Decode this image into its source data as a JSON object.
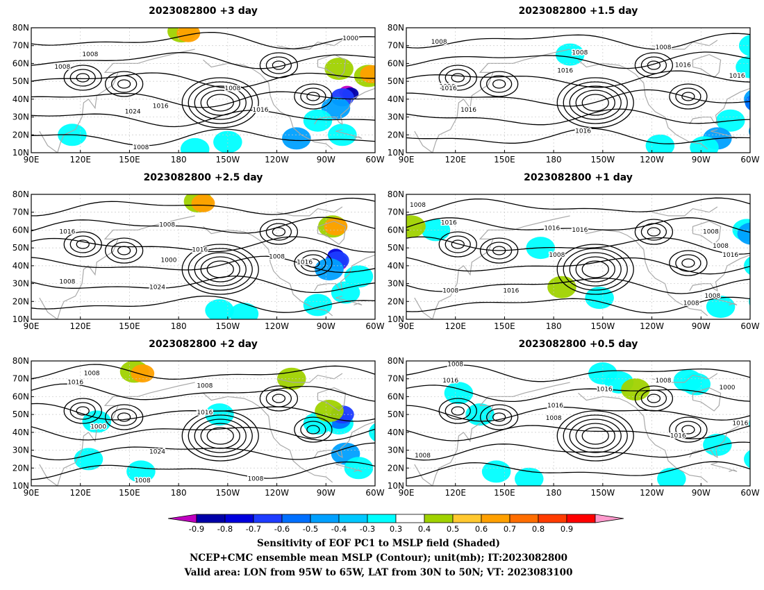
{
  "chart_data": {
    "type": "heatmap",
    "panels": [
      {
        "title": "2023082800 +3 day",
        "lead_days": 3
      },
      {
        "title": "2023082800 +1.5 day",
        "lead_days": 1.5
      },
      {
        "title": "2023082800 +2.5 day",
        "lead_days": 2.5
      },
      {
        "title": "2023082800 +1 day",
        "lead_days": 1
      },
      {
        "title": "2023082800 +2 day",
        "lead_days": 2
      },
      {
        "title": "2023082800 +0.5 day",
        "lead_days": 0.5
      }
    ],
    "x_ticks": [
      "90E",
      "120E",
      "150E",
      "180",
      "150W",
      "120W",
      "90W",
      "60W"
    ],
    "y_ticks": [
      "10N",
      "20N",
      "30N",
      "40N",
      "50N",
      "60N",
      "70N",
      "80N"
    ],
    "lon_range": [
      90,
      300
    ],
    "lat_range": [
      10,
      80
    ],
    "colorbar": {
      "levels": [
        "-0.9",
        "-0.8",
        "-0.7",
        "-0.6",
        "-0.5",
        "-0.4",
        "-0.3",
        "0.3",
        "0.4",
        "0.5",
        "0.6",
        "0.7",
        "0.8",
        "0.9"
      ],
      "colors": [
        "#c000c0",
        "#0000a8",
        "#0000dd",
        "#1e3cff",
        "#0070ff",
        "#00a0ff",
        "#00c8ff",
        "#00ffff",
        "#ffffff",
        "#a0d200",
        "#ffc830",
        "#ffa000",
        "#ff6e00",
        "#ff3c00",
        "#ff0000",
        "#ff99cc"
      ]
    },
    "contour_labels": [
      {
        "panel": 0,
        "items": [
          [
            "1008",
            109,
            57
          ],
          [
            "1008",
            126,
            64
          ],
          [
            "1016",
            169,
            35
          ],
          [
            "1016",
            230,
            33
          ],
          [
            "1024",
            152,
            32
          ],
          [
            "1008",
            213,
            45
          ],
          [
            "1000",
            285,
            73
          ],
          [
            "1008",
            157,
            12
          ]
        ]
      },
      {
        "panel": 1,
        "items": [
          [
            "1008",
            110,
            71
          ],
          [
            "1016",
            187,
            55
          ],
          [
            "1008",
            196,
            65
          ],
          [
            "1008",
            247,
            68
          ],
          [
            "1016",
            259,
            58
          ],
          [
            "1016",
            292,
            52
          ],
          [
            "1008",
            115,
            46
          ],
          [
            "1016",
            116,
            45
          ],
          [
            "1016",
            128,
            33
          ],
          [
            "1016",
            198,
            21
          ]
        ]
      },
      {
        "panel": 2,
        "items": [
          [
            "1016",
            112,
            58
          ],
          [
            "1008",
            173,
            62
          ],
          [
            "1000",
            174,
            42
          ],
          [
            "1016",
            193,
            48
          ],
          [
            "1024",
            167,
            27
          ],
          [
            "1008",
            240,
            44
          ],
          [
            "1016",
            257,
            41
          ],
          [
            "1008",
            112,
            30
          ]
        ]
      },
      {
        "panel": 3,
        "items": [
          [
            "1008",
            97,
            73
          ],
          [
            "1016",
            116,
            63
          ],
          [
            "1016",
            179,
            60
          ],
          [
            "1016",
            196,
            59
          ],
          [
            "1008",
            276,
            58
          ],
          [
            "1008",
            282,
            50
          ],
          [
            "1016",
            288,
            45
          ],
          [
            "1008",
            182,
            45
          ],
          [
            "1008",
            117,
            25
          ],
          [
            "1016",
            154,
            25
          ],
          [
            "1008",
            277,
            22
          ],
          [
            "1008",
            264,
            18
          ]
        ]
      },
      {
        "panel": 4,
        "items": [
          [
            "1008",
            127,
            72
          ],
          [
            "1016",
            117,
            67
          ],
          [
            "1008",
            196,
            65
          ],
          [
            "1000",
            131,
            42
          ],
          [
            "1016",
            196,
            50
          ],
          [
            "1024",
            167,
            28
          ],
          [
            "1008",
            227,
            13
          ],
          [
            "1008",
            158,
            12
          ]
        ]
      },
      {
        "panel": 5,
        "items": [
          [
            "1008",
            120,
            77
          ],
          [
            "1016",
            117,
            68
          ],
          [
            "1008",
            247,
            68
          ],
          [
            "1016",
            211,
            63
          ],
          [
            "1000",
            286,
            64
          ],
          [
            "1016",
            181,
            54
          ],
          [
            "1008",
            180,
            47
          ],
          [
            "1016",
            294,
            44
          ],
          [
            "1016",
            256,
            37
          ],
          [
            "1008",
            100,
            26
          ]
        ]
      }
    ],
    "shading_regions": [
      {
        "panel": 0,
        "items": [
          [
            -0.9,
            -77,
            44
          ],
          [
            -0.8,
            -75,
            43
          ],
          [
            -0.6,
            -80,
            41
          ],
          [
            -0.4,
            -84,
            35
          ],
          [
            -0.3,
            -95,
            28
          ],
          [
            -0.4,
            -108,
            18
          ],
          [
            -0.3,
            -80,
            20
          ],
          [
            -0.3,
            -150,
            16
          ],
          [
            -0.3,
            -170,
            12
          ],
          [
            -0.3,
            115,
            20
          ],
          [
            0.4,
            -178,
            78
          ],
          [
            0.5,
            -174,
            77
          ],
          [
            0.4,
            -64,
            53
          ],
          [
            0.5,
            -62,
            54
          ],
          [
            0.3,
            -82,
            57
          ]
        ]
      },
      {
        "panel": 1,
        "items": [
          [
            -0.3,
            -72,
            28
          ],
          [
            -0.4,
            -55,
            40
          ],
          [
            -0.5,
            -56,
            38
          ],
          [
            -0.4,
            -52,
            22
          ],
          [
            -0.4,
            -80,
            18
          ],
          [
            -0.3,
            -88,
            13
          ],
          [
            -0.3,
            -60,
            58
          ],
          [
            -0.3,
            -58,
            70
          ],
          [
            -0.3,
            -115,
            14
          ],
          [
            -0.3,
            -170,
            65
          ]
        ]
      },
      {
        "panel": 2,
        "items": [
          [
            -0.9,
            -82,
            41
          ],
          [
            -0.8,
            -82,
            43
          ],
          [
            -0.7,
            -84,
            46
          ],
          [
            -0.6,
            -83,
            43
          ],
          [
            -0.4,
            -88,
            38
          ],
          [
            -0.3,
            -78,
            25
          ],
          [
            -0.3,
            -95,
            18
          ],
          [
            -0.3,
            -155,
            15
          ],
          [
            -0.3,
            -140,
            13
          ],
          [
            -0.3,
            -70,
            34
          ],
          [
            0.4,
            -168,
            76
          ],
          [
            0.5,
            -165,
            75
          ],
          [
            0.4,
            -86,
            62
          ],
          [
            0.5,
            -84,
            62
          ]
        ]
      },
      {
        "panel": 3,
        "items": [
          [
            -0.3,
            -62,
            60
          ],
          [
            -0.4,
            -59,
            58
          ],
          [
            -0.3,
            -55,
            40
          ],
          [
            -0.3,
            -52,
            20
          ],
          [
            -0.3,
            -78,
            17
          ],
          [
            -0.3,
            172,
            50
          ],
          [
            -0.3,
            -152,
            22
          ],
          [
            -0.3,
            108,
            60
          ],
          [
            0.4,
            93,
            62
          ],
          [
            0.4,
            -175,
            28
          ]
        ]
      },
      {
        "panel": 4,
        "items": [
          [
            -0.3,
            -82,
            45
          ],
          [
            -0.5,
            -82,
            47
          ],
          [
            -0.6,
            -80,
            50
          ],
          [
            -0.3,
            -95,
            45
          ],
          [
            -0.4,
            -78,
            28
          ],
          [
            -0.3,
            -70,
            20
          ],
          [
            -0.3,
            -55,
            40
          ],
          [
            -0.3,
            130,
            46
          ],
          [
            -0.3,
            125,
            25
          ],
          [
            -0.3,
            157,
            18
          ],
          [
            -0.3,
            -155,
            50
          ],
          [
            0.4,
            153,
            74
          ],
          [
            0.5,
            158,
            73
          ],
          [
            0.4,
            -111,
            70
          ],
          [
            0.4,
            -88,
            52
          ]
        ]
      },
      {
        "panel": 5,
        "items": [
          [
            -0.3,
            -98,
            69
          ],
          [
            -0.3,
            -93,
            67
          ],
          [
            -0.3,
            122,
            62
          ],
          [
            -0.3,
            135,
            50
          ],
          [
            -0.3,
            -150,
            73
          ],
          [
            -0.3,
            -140,
            68
          ],
          [
            -0.3,
            -52,
            45
          ],
          [
            -0.3,
            -80,
            33
          ],
          [
            -0.3,
            -55,
            25
          ],
          [
            -0.3,
            -108,
            14
          ],
          [
            -0.3,
            165,
            14
          ],
          [
            -0.3,
            145,
            18
          ],
          [
            0.4,
            -130,
            64
          ]
        ]
      }
    ]
  },
  "captions": {
    "line1": "Sensitivity of EOF PC1 to MSLP field (Shaded)",
    "line2": "NCEP+CMC ensemble mean MSLP (Contour); unit(mb); IT:2023082800",
    "line3": "Valid area: LON from 95W to 65W, LAT from 30N to 50N; VT: 2023083100"
  }
}
